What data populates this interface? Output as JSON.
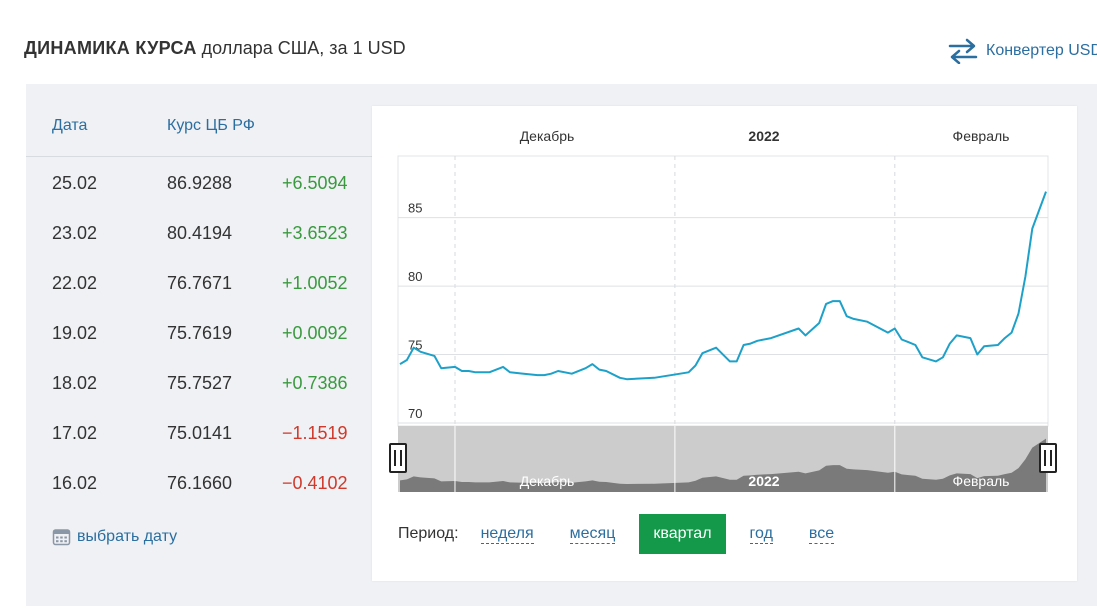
{
  "header": {
    "title_bold": "ДИНАМИКА КУРСА",
    "title_rest": "доллара США, за 1 USD",
    "converter_label": "Конвертер USD"
  },
  "table": {
    "col_date": "Дата",
    "col_rate": "Курс ЦБ РФ",
    "rows": [
      {
        "date": "25.02",
        "rate": "86.9288",
        "change": "+6.5094",
        "trend": "up"
      },
      {
        "date": "23.02",
        "rate": "80.4194",
        "change": "+3.6523",
        "trend": "up"
      },
      {
        "date": "22.02",
        "rate": "76.7671",
        "change": "+1.0052",
        "trend": "up"
      },
      {
        "date": "19.02",
        "rate": "75.7619",
        "change": "+0.0092",
        "trend": "up"
      },
      {
        "date": "18.02",
        "rate": "75.7527",
        "change": "+0.7386",
        "trend": "up"
      },
      {
        "date": "17.02",
        "rate": "75.0141",
        "change": "−1.1519",
        "trend": "down"
      },
      {
        "date": "16.02",
        "rate": "76.1660",
        "change": "−0.4102",
        "trend": "down"
      }
    ],
    "pick_date_label": "выбрать дату"
  },
  "period": {
    "label": "Период:",
    "options": [
      "неделя",
      "месяц",
      "квартал",
      "год",
      "все"
    ],
    "active": "квартал"
  },
  "colors": {
    "line": "#1da1c9",
    "positive": "#3a9a3f",
    "negative": "#d0392b",
    "link": "#2b6ea0",
    "active_period": "#14994a",
    "navigator_fill": "#7a7a7a",
    "navigator_bg": "#cccccc"
  },
  "chart_data": {
    "type": "line",
    "top_labels": [
      "Декабрь",
      "2022",
      "Февраль"
    ],
    "navigator_labels": [
      "Декабрь",
      "2022",
      "Февраль"
    ],
    "yticks": [
      70,
      75,
      80,
      85
    ],
    "ylim": [
      70,
      89.5
    ],
    "x_unit": "days",
    "xlim": [
      0,
      94
    ],
    "separators": [
      8,
      40,
      72
    ],
    "series": [
      {
        "x": [
          0,
          1,
          2,
          3,
          5,
          6,
          8,
          9,
          10,
          11,
          13,
          15,
          16,
          18,
          20,
          21,
          22,
          23,
          25,
          27,
          28,
          29,
          30,
          32,
          33,
          37,
          42,
          43,
          44,
          46,
          48,
          49,
          50,
          51,
          52,
          54,
          58,
          59,
          61,
          62,
          63,
          64,
          65,
          66,
          68,
          71,
          72,
          73,
          74,
          75,
          76,
          78,
          79,
          80,
          81,
          83,
          84,
          85,
          87,
          88,
          89,
          90,
          91,
          92,
          94
        ],
        "y": [
          74.3,
          74.6,
          75.5,
          75.2,
          74.9,
          74.0,
          74.1,
          73.8,
          73.8,
          73.7,
          73.7,
          74.1,
          73.7,
          73.6,
          73.5,
          73.5,
          73.6,
          73.8,
          73.6,
          74.0,
          74.3,
          73.9,
          73.8,
          73.3,
          73.2,
          73.3,
          73.7,
          74.2,
          75.1,
          75.5,
          74.5,
          74.5,
          75.7,
          75.8,
          76.0,
          76.2,
          76.9,
          76.4,
          77.3,
          78.7,
          78.9,
          78.9,
          77.8,
          77.6,
          77.4,
          76.6,
          76.9,
          76.1,
          75.9,
          75.7,
          74.8,
          74.5,
          74.8,
          75.8,
          76.4,
          76.2,
          75.0,
          75.6,
          75.7,
          76.2,
          76.6,
          78.0,
          80.7,
          84.2,
          86.9
        ]
      }
    ]
  }
}
